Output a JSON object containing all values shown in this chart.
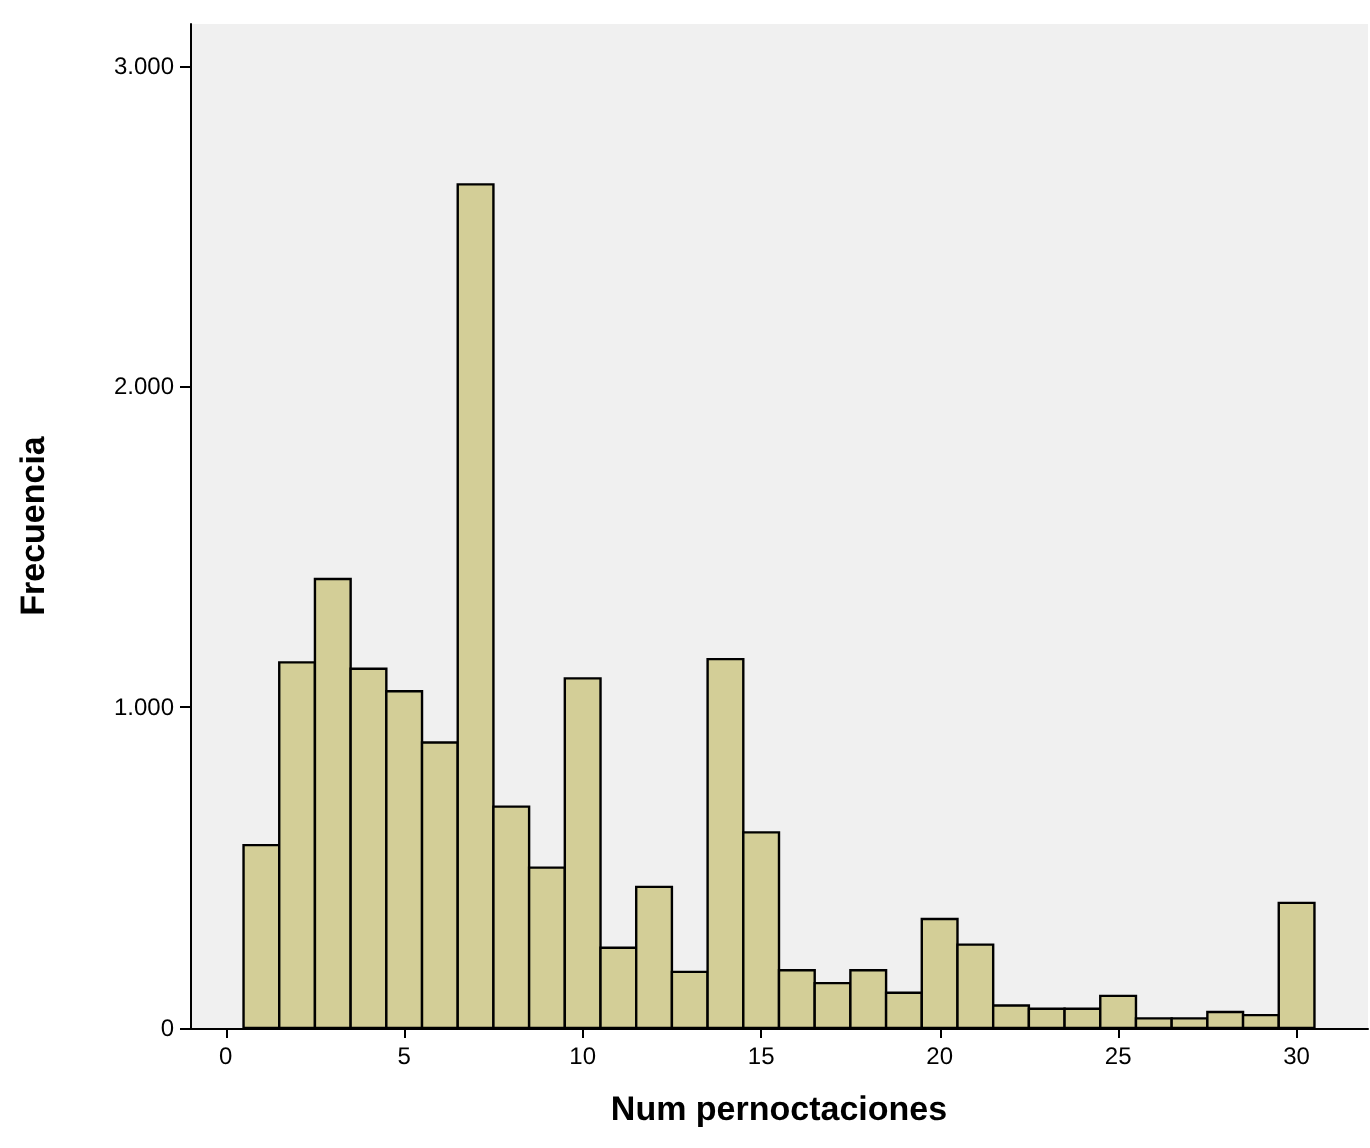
{
  "chart_data": {
    "type": "histogram",
    "xlabel": "Num pernoctaciones",
    "ylabel": "Frecuencia",
    "bins": [
      0.5,
      1.5,
      2.5,
      3.5,
      4.5,
      5.5,
      6.5,
      7.5,
      8.5,
      9.5,
      10.5,
      11.5,
      12.5,
      13.5,
      14.5,
      15.5,
      16.5,
      17.5,
      18.5,
      19.5,
      20.5,
      21.5,
      22.5,
      23.5,
      24.5,
      25.5,
      26.5,
      27.5,
      28.5,
      29.5,
      30.5
    ],
    "values": [
      570,
      1140,
      1400,
      1120,
      1050,
      890,
      2630,
      690,
      500,
      1090,
      250,
      440,
      175,
      1150,
      610,
      180,
      140,
      180,
      110,
      340,
      260,
      70,
      60,
      60,
      100,
      30,
      30,
      50,
      40,
      390
    ],
    "color": "#d3ce97",
    "xlim": [
      -1,
      32
    ],
    "xticks": [
      0,
      5,
      10,
      15,
      20,
      25,
      30
    ],
    "ylim": [
      0,
      3130
    ],
    "yticks": [
      0,
      {
        "value": 1000,
        "label": "1.000"
      },
      {
        "value": 2000,
        "label": "2.000"
      },
      {
        "value": 3000,
        "label": "3.000"
      }
    ],
    "grid": false
  }
}
